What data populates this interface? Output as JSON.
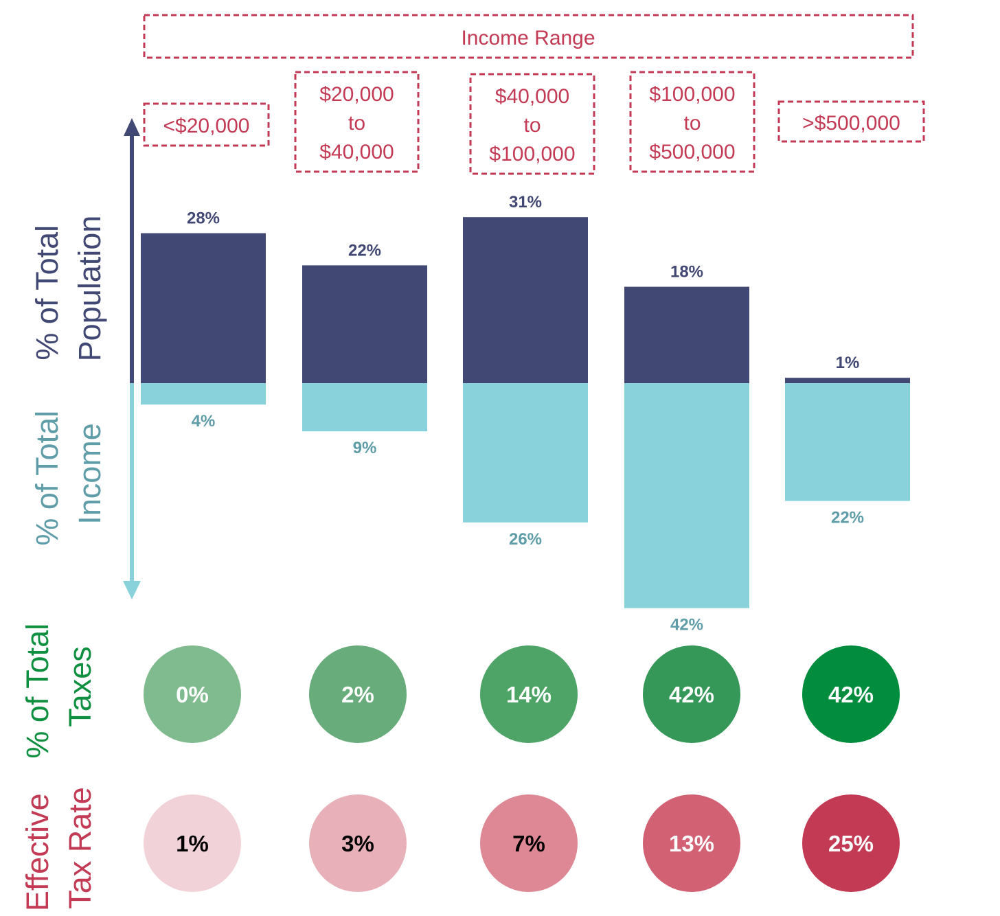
{
  "chart_data": {
    "type": "bar",
    "title": "Income Range",
    "categories": [
      "<$20,000",
      "$20,000 to $40,000",
      "$40,000 to $100,000",
      "$100,000 to $500,000",
      ">$500,000"
    ],
    "category_label_lines": [
      [
        "<$20,000"
      ],
      [
        "$20,000",
        "to",
        "$40,000"
      ],
      [
        "$40,000",
        "to",
        "$100,000"
      ],
      [
        "$100,000",
        "to",
        "$500,000"
      ],
      [
        ">$500,000"
      ]
    ],
    "series": [
      {
        "name": "% of Total Population",
        "values": [
          28,
          22,
          31,
          18,
          1
        ],
        "labels": [
          "28%",
          "22%",
          "31%",
          "18%",
          "1%"
        ],
        "color": "#414873",
        "direction": "up"
      },
      {
        "name": "% of Total Income",
        "values": [
          4,
          9,
          26,
          42,
          22
        ],
        "labels": [
          "4%",
          "9%",
          "26%",
          "42%",
          "22%"
        ],
        "color": "#89D2DB",
        "label_color": "#5F9EA8",
        "direction": "down"
      }
    ],
    "rows": [
      {
        "name": "% of Total Taxes",
        "values": [
          0,
          2,
          14,
          42,
          42
        ],
        "labels": [
          "0%",
          "2%",
          "14%",
          "42%",
          "42%"
        ],
        "colors": [
          "#7FBB8E",
          "#67AC7A",
          "#4DA466",
          "#359858",
          "#028D3E"
        ],
        "text_color": "#ffffff",
        "label_color": "#0F9040"
      },
      {
        "name": "Effective Tax Rate",
        "values": [
          1,
          3,
          7,
          13,
          25
        ],
        "labels": [
          "1%",
          "3%",
          "7%",
          "13%",
          "25%"
        ],
        "colors": [
          "#F1D2D8",
          "#E8B1BA",
          "#DE8895",
          "#D26174",
          "#C33A54"
        ],
        "text_colors": [
          "#000000",
          "#000000",
          "#000000",
          "#ffffff",
          "#ffffff"
        ],
        "label_color": "#C33A54"
      }
    ],
    "axis_labels": {
      "population": [
        "% of Total",
        "Population"
      ],
      "income": [
        "% of Total",
        "Income"
      ],
      "taxes": [
        "% of Total",
        "Taxes"
      ],
      "tax_rate": [
        "Effective",
        "Tax Rate"
      ]
    },
    "colors": {
      "population": "#414873",
      "income": "#89D2DB",
      "range_border": "#C33A54",
      "range_text": "#C33A54"
    }
  }
}
